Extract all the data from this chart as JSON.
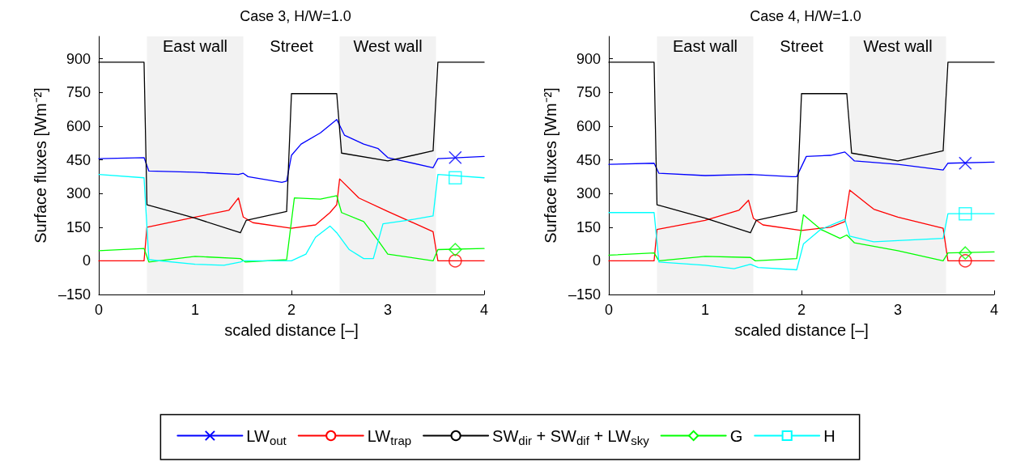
{
  "chart_data": [
    {
      "type": "line",
      "title": "Case 3, H/W=1.0",
      "xlabel": "scaled distance [–]",
      "ylabel": "Surface fluxes [Wm⁻²]",
      "xlim": [
        0,
        4
      ],
      "xticks": [
        0,
        1,
        2,
        3,
        4
      ],
      "ylim": [
        -150,
        1000
      ],
      "yticks": [
        {
          "value": -150,
          "label": "–150"
        },
        0,
        150,
        300,
        450,
        600,
        750,
        900
      ],
      "grid": false,
      "legend": "bottom",
      "line_style": "solid",
      "annotations": [
        "Street"
      ],
      "bands": [
        {
          "axis": "x",
          "from": 0.5,
          "to": 1.5,
          "label": "East wall",
          "color": "#f2f2f2"
        },
        {
          "axis": "x",
          "from": 2.5,
          "to": 3.5,
          "label": "West wall",
          "color": "#f2f2f2"
        }
      ],
      "series": [
        {
          "name": "LW$_{out}$",
          "color": "#0000ff",
          "x": [
            0,
            0.47,
            0.52,
            1.0,
            1.45,
            1.5,
            1.55,
            1.9,
            1.95,
            2.0,
            2.1,
            2.3,
            2.47,
            2.55,
            2.75,
            2.9,
            3.0,
            3.47,
            3.52,
            4.0
          ],
          "values": [
            455,
            460,
            400,
            395,
            385,
            390,
            375,
            350,
            355,
            470,
            520,
            570,
            630,
            560,
            520,
            500,
            460,
            415,
            455,
            465
          ]
        },
        {
          "name": "LW$_{trap}$",
          "color": "#ff0000",
          "x": [
            0,
            0.47,
            0.5,
            1.0,
            1.35,
            1.45,
            1.5,
            1.6,
            2.0,
            2.25,
            2.4,
            2.47,
            2.5,
            2.7,
            3.0,
            3.47,
            3.52,
            4.0
          ],
          "values": [
            0,
            0,
            150,
            195,
            225,
            280,
            195,
            170,
            145,
            160,
            215,
            250,
            365,
            280,
            220,
            130,
            0,
            0
          ]
        },
        {
          "name": "SW$_{dir}$ + SW$_{dif}$ + LW$_{sky}$",
          "color": "#000000",
          "x": [
            0,
            0.47,
            0.5,
            1.0,
            1.47,
            1.53,
            1.95,
            2.0,
            2.47,
            2.52,
            3.0,
            3.47,
            3.52,
            4.0
          ],
          "values": [
            885,
            885,
            250,
            190,
            125,
            180,
            220,
            745,
            745,
            480,
            445,
            490,
            885,
            885
          ]
        },
        {
          "name": "G",
          "color": "#00ff00",
          "x": [
            0,
            0.47,
            0.52,
            1.0,
            1.47,
            1.52,
            1.95,
            2.03,
            2.3,
            2.47,
            2.52,
            2.75,
            2.9,
            3.0,
            3.47,
            3.52,
            4.0
          ],
          "values": [
            45,
            55,
            -5,
            20,
            10,
            -5,
            5,
            280,
            275,
            290,
            215,
            175,
            90,
            30,
            0,
            50,
            55
          ]
        },
        {
          "name": "H",
          "color": "#00ffff",
          "x": [
            0,
            0.47,
            0.52,
            1.0,
            1.3,
            1.47,
            1.5,
            2.0,
            2.15,
            2.25,
            2.4,
            2.47,
            2.6,
            2.75,
            2.85,
            2.95,
            3.2,
            3.47,
            3.52,
            4.0
          ],
          "values": [
            385,
            370,
            5,
            -15,
            -20,
            -5,
            0,
            0,
            30,
            105,
            155,
            125,
            50,
            10,
            10,
            165,
            180,
            200,
            385,
            370
          ]
        },
        {
          "type": "scatter",
          "color": "#0000ff",
          "marker": "cross",
          "x": [
            3.7
          ],
          "values": [
            460
          ]
        },
        {
          "type": "scatter",
          "color": "#ff0000",
          "marker": "circle",
          "x": [
            3.7
          ],
          "values": [
            0
          ]
        },
        {
          "type": "scatter",
          "color": "#00ff00",
          "marker": "diamond",
          "x": [
            3.7
          ],
          "values": [
            50
          ]
        },
        {
          "type": "scatter",
          "color": "#00ffff",
          "marker": "square",
          "x": [
            3.7
          ],
          "values": [
            370
          ]
        }
      ]
    },
    {
      "type": "line",
      "title": "Case 4, H/W=1.0",
      "xlabel": "scaled distance [–]",
      "ylabel": "Surface fluxes [Wm⁻²]",
      "xlim": [
        0,
        4
      ],
      "xticks": [
        0,
        1,
        2,
        3,
        4
      ],
      "ylim": [
        -150,
        1000
      ],
      "yticks": [
        {
          "value": -150,
          "label": "–150"
        },
        0,
        150,
        300,
        450,
        600,
        750,
        900
      ],
      "grid": false,
      "line_style": "solid",
      "annotations": [
        "Street"
      ],
      "bands": [
        {
          "axis": "x",
          "from": 0.5,
          "to": 1.5,
          "label": "East wall",
          "color": "#f2f2f2"
        },
        {
          "axis": "x",
          "from": 2.5,
          "to": 3.5,
          "label": "West wall",
          "color": "#f2f2f2"
        }
      ],
      "series": [
        {
          "color": "#0000ff",
          "x": [
            0,
            0.47,
            0.52,
            1.0,
            1.47,
            1.9,
            1.95,
            2.05,
            2.3,
            2.45,
            2.55,
            3.0,
            3.47,
            3.52,
            4.0
          ],
          "values": [
            430,
            435,
            390,
            380,
            385,
            375,
            375,
            465,
            470,
            485,
            445,
            430,
            405,
            435,
            440
          ]
        },
        {
          "color": "#ff0000",
          "x": [
            0,
            0.47,
            0.5,
            1.0,
            1.35,
            1.45,
            1.5,
            1.6,
            2.0,
            2.3,
            2.45,
            2.5,
            2.75,
            3.0,
            3.47,
            3.52,
            4.0
          ],
          "values": [
            0,
            0,
            140,
            180,
            225,
            270,
            190,
            160,
            135,
            150,
            175,
            315,
            230,
            195,
            145,
            0,
            0
          ]
        },
        {
          "color": "#000000",
          "x": [
            0,
            0.47,
            0.5,
            1.0,
            1.47,
            1.53,
            1.95,
            2.0,
            2.47,
            2.52,
            3.0,
            3.47,
            3.52,
            4.0
          ],
          "values": [
            885,
            885,
            250,
            190,
            125,
            180,
            220,
            745,
            745,
            480,
            445,
            490,
            885,
            885
          ]
        },
        {
          "color": "#00ff00",
          "x": [
            0,
            0.47,
            0.52,
            1.0,
            1.47,
            1.52,
            1.95,
            2.02,
            2.2,
            2.4,
            2.47,
            2.55,
            3.0,
            3.47,
            3.52,
            4.0
          ],
          "values": [
            25,
            35,
            0,
            20,
            15,
            0,
            10,
            205,
            140,
            100,
            115,
            80,
            45,
            0,
            35,
            40
          ]
        },
        {
          "color": "#00ffff",
          "x": [
            0,
            0.47,
            0.52,
            1.0,
            1.3,
            1.47,
            1.55,
            1.95,
            2.02,
            2.2,
            2.45,
            2.5,
            2.75,
            3.0,
            3.47,
            3.52,
            4.0
          ],
          "values": [
            215,
            215,
            -5,
            -20,
            -35,
            -15,
            -30,
            -40,
            75,
            140,
            185,
            110,
            85,
            90,
            100,
            210,
            210
          ]
        },
        {
          "type": "scatter",
          "color": "#0000ff",
          "marker": "cross",
          "x": [
            3.7
          ],
          "values": [
            435
          ]
        },
        {
          "type": "scatter",
          "color": "#ff0000",
          "marker": "circle",
          "x": [
            3.7
          ],
          "values": [
            0
          ]
        },
        {
          "type": "scatter",
          "color": "#00ff00",
          "marker": "diamond",
          "x": [
            3.7
          ],
          "values": [
            35
          ]
        },
        {
          "type": "scatter",
          "color": "#00ffff",
          "marker": "square",
          "x": [
            3.7
          ],
          "values": [
            210
          ]
        }
      ]
    }
  ]
}
